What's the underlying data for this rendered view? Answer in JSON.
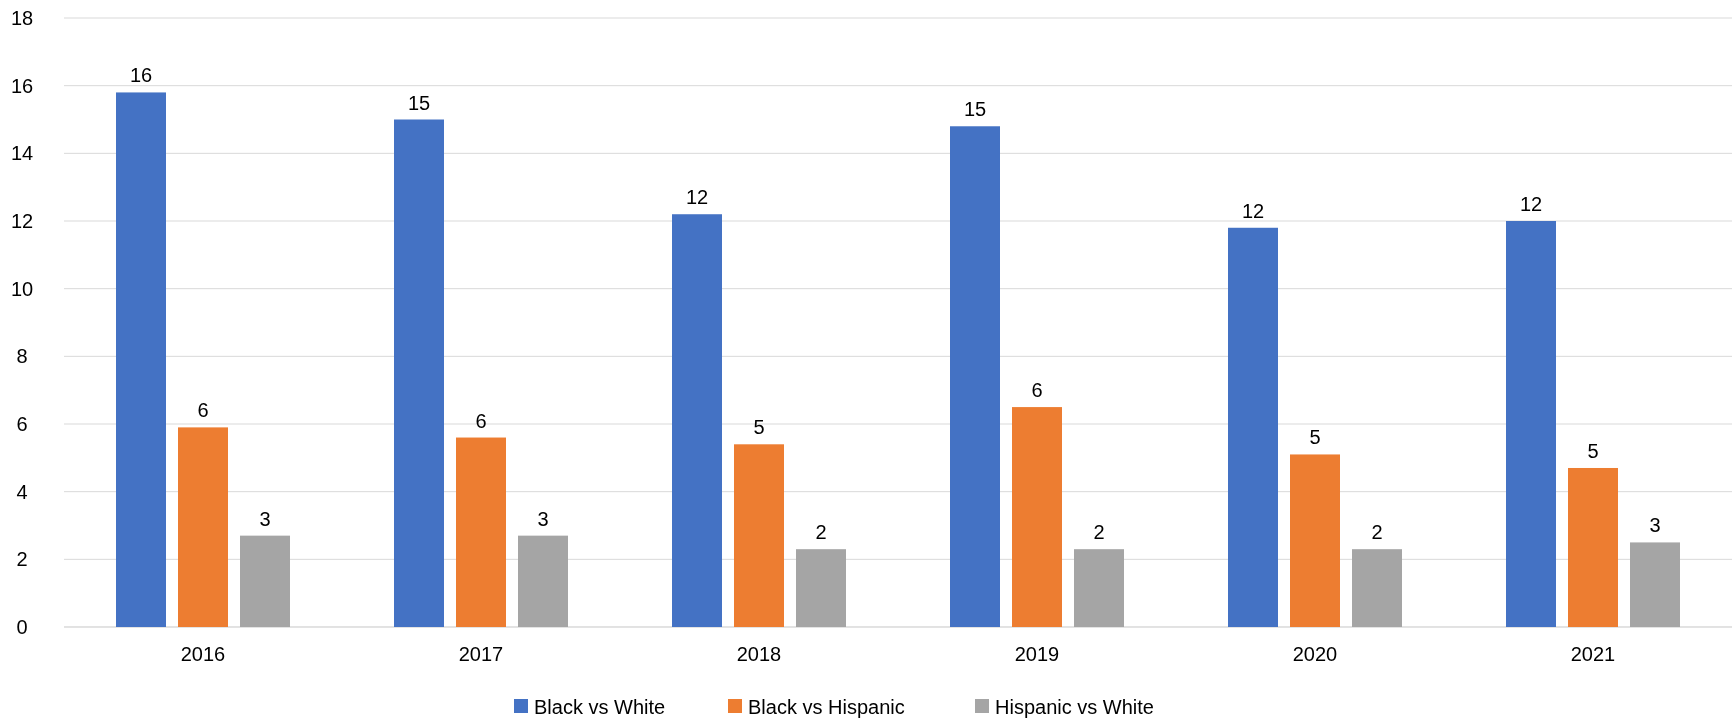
{
  "chart_data": {
    "type": "bar",
    "categories": [
      "2016",
      "2017",
      "2018",
      "2019",
      "2020",
      "2021"
    ],
    "series": [
      {
        "name": "Black vs White",
        "color": "#4472c4",
        "values": [
          15.8,
          15.0,
          12.2,
          14.8,
          11.8,
          12.0
        ],
        "value_labels": [
          "16",
          "15",
          "12",
          "15",
          "12",
          "12"
        ]
      },
      {
        "name": "Black vs Hispanic",
        "color": "#ed7d31",
        "values": [
          5.9,
          5.6,
          5.4,
          6.5,
          5.1,
          4.7
        ],
        "value_labels": [
          "6",
          "6",
          "5",
          "6",
          "5",
          "5"
        ]
      },
      {
        "name": "Hispanic vs White",
        "color": "#a5a5a5",
        "values": [
          2.7,
          2.7,
          2.3,
          2.3,
          2.3,
          2.5
        ],
        "value_labels": [
          "3",
          "3",
          "2",
          "2",
          "2",
          "3"
        ]
      }
    ],
    "ylim": [
      0,
      18
    ],
    "yticks": [
      0,
      2,
      4,
      6,
      8,
      10,
      12,
      14,
      16,
      18
    ],
    "grid": "y",
    "legend": "bottom"
  }
}
